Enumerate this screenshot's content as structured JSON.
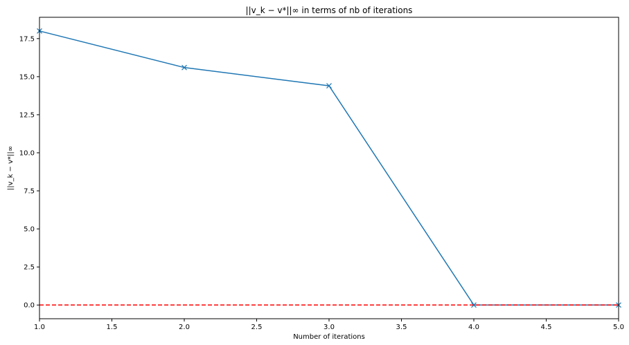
{
  "chart_data": {
    "type": "line",
    "title": "||v_k − v*||∞ in terms of nb of iterations",
    "xlabel": "Number of iterations",
    "ylabel": "||v_k − v*||∞",
    "xlim": [
      1.0,
      5.0
    ],
    "ylim": [
      -0.9,
      18.9
    ],
    "xticks": [
      1.0,
      1.5,
      2.0,
      2.5,
      3.0,
      3.5,
      4.0,
      4.5,
      5.0
    ],
    "xtick_labels": [
      "1.0",
      "1.5",
      "2.0",
      "2.5",
      "3.0",
      "3.5",
      "4.0",
      "4.5",
      "5.0"
    ],
    "yticks": [
      0.0,
      2.5,
      5.0,
      7.5,
      10.0,
      12.5,
      15.0,
      17.5
    ],
    "ytick_labels": [
      "0.0",
      "2.5",
      "5.0",
      "7.5",
      "10.0",
      "12.5",
      "15.0",
      "17.5"
    ],
    "grid": false,
    "series": [
      {
        "x": [
          1,
          2,
          3,
          4,
          5
        ],
        "y": [
          18.0,
          15.6,
          14.4,
          0.0,
          0.0
        ],
        "color": "#1f77b4",
        "marker": "x",
        "linestyle": "solid"
      },
      {
        "x": [
          1,
          5
        ],
        "y": [
          0.0,
          0.0
        ],
        "color": "#ff0000",
        "linestyle": "dashed"
      }
    ]
  }
}
